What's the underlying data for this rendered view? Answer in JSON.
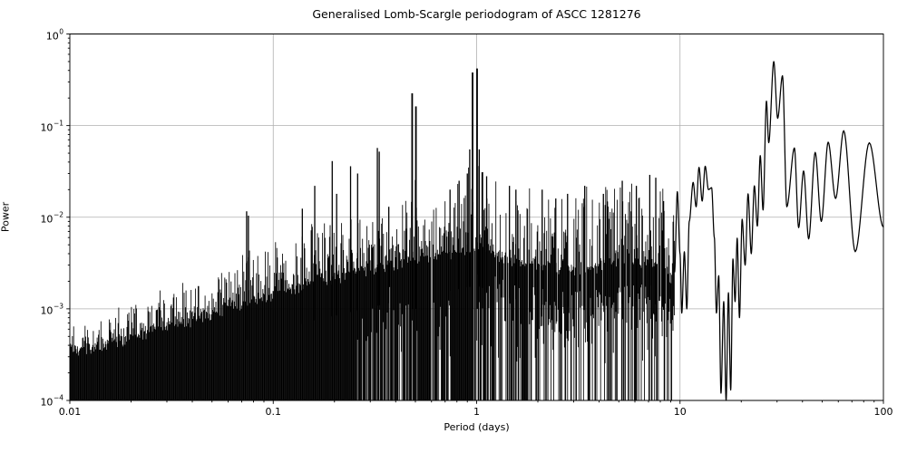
{
  "chart_data": {
    "type": "line",
    "title": "Generalised Lomb-Scargle periodogram of ASCC 1281276",
    "xlabel": "Period (days)",
    "ylabel": "Power",
    "xscale": "log",
    "yscale": "log",
    "xlim": [
      0.01,
      100
    ],
    "ylim": [
      0.0001,
      1
    ],
    "grid": true,
    "legend": "none",
    "line_color": "#000000",
    "grid_color": "#b0b0b0",
    "x_ticks": [
      {
        "value": 0.01,
        "label": "0.01"
      },
      {
        "value": 0.1,
        "label": "0.1"
      },
      {
        "value": 1,
        "label": "1"
      },
      {
        "value": 10,
        "label": "10"
      },
      {
        "value": 100,
        "label": "100"
      }
    ],
    "y_ticks": [
      {
        "value": 1,
        "base": "10",
        "exp": "0"
      },
      {
        "value": 0.1,
        "base": "10",
        "exp": "−1"
      },
      {
        "value": 0.01,
        "base": "10",
        "exp": "−2"
      },
      {
        "value": 0.001,
        "base": "10",
        "exp": "−3"
      },
      {
        "value": 0.0001,
        "base": "10",
        "exp": "−4"
      }
    ],
    "dense_region": {
      "comment": "Unresolved noise forest, period 0.01-9.4 d: solid mass from ylim bottom up to noise_floor_top, spikes up to spike_envelope, white dropout gaps appear for P>1 d",
      "period_range": [
        0.01,
        9.4
      ],
      "noise_floor_top": [
        [
          0.01,
          0.00033
        ],
        [
          0.02,
          0.00046
        ],
        [
          0.03,
          0.0006
        ],
        [
          0.05,
          0.00085
        ],
        [
          0.07,
          0.0011
        ],
        [
          0.1,
          0.00135
        ],
        [
          0.15,
          0.0018
        ],
        [
          0.2,
          0.0021
        ],
        [
          0.3,
          0.0026
        ],
        [
          0.4,
          0.003
        ],
        [
          0.5,
          0.0033
        ],
        [
          0.7,
          0.0038
        ],
        [
          1.0,
          0.0045
        ],
        [
          1.3,
          0.0035
        ],
        [
          2.0,
          0.0028
        ],
        [
          3.0,
          0.0026
        ],
        [
          5.0,
          0.0028
        ],
        [
          7.0,
          0.0032
        ],
        [
          9.4,
          0.002
        ]
      ],
      "spike_envelope": [
        [
          0.01,
          0.0006
        ],
        [
          0.014,
          0.00075
        ],
        [
          0.02,
          0.00115
        ],
        [
          0.03,
          0.0017
        ],
        [
          0.045,
          0.0023
        ],
        [
          0.06,
          0.0032
        ],
        [
          0.08,
          0.0042
        ],
        [
          0.1,
          0.005
        ],
        [
          0.13,
          0.007
        ],
        [
          0.17,
          0.009
        ],
        [
          0.22,
          0.01
        ],
        [
          0.3,
          0.011
        ],
        [
          0.4,
          0.012
        ],
        [
          0.46,
          0.014
        ],
        [
          0.49,
          0.035
        ],
        [
          0.52,
          0.014
        ],
        [
          0.65,
          0.014
        ],
        [
          0.8,
          0.02
        ],
        [
          0.92,
          0.04
        ],
        [
          1.0,
          0.07
        ],
        [
          1.05,
          0.04
        ],
        [
          1.1,
          0.03
        ],
        [
          1.3,
          0.022
        ],
        [
          1.6,
          0.02
        ],
        [
          2.0,
          0.02
        ],
        [
          3.0,
          0.02
        ],
        [
          4.0,
          0.021
        ],
        [
          5.0,
          0.024
        ],
        [
          6.0,
          0.024
        ],
        [
          7.0,
          0.028
        ],
        [
          8.0,
          0.022
        ],
        [
          9.4,
          0.015
        ]
      ],
      "notable_peaks": [
        [
          0.074,
          0.0116
        ],
        [
          0.0755,
          0.0104
        ],
        [
          0.139,
          0.0124
        ],
        [
          0.16,
          0.022
        ],
        [
          0.195,
          0.041
        ],
        [
          0.205,
          0.018
        ],
        [
          0.24,
          0.036
        ],
        [
          0.26,
          0.03
        ],
        [
          0.325,
          0.057
        ],
        [
          0.332,
          0.052
        ],
        [
          0.37,
          0.013
        ],
        [
          0.74,
          0.02
        ],
        [
          0.82,
          0.025
        ],
        [
          0.9,
          0.03
        ],
        [
          0.925,
          0.055
        ],
        [
          1.03,
          0.055
        ],
        [
          1.07,
          0.031
        ],
        [
          1.12,
          0.028
        ],
        [
          1.45,
          0.022
        ],
        [
          1.56,
          0.02
        ],
        [
          2.1,
          0.02
        ],
        [
          2.45,
          0.016
        ],
        [
          2.8,
          0.018
        ],
        [
          3.4,
          0.022
        ],
        [
          4.2,
          0.018
        ],
        [
          5.2,
          0.025
        ],
        [
          6.1,
          0.022
        ],
        [
          7.1,
          0.029
        ],
        [
          7.6,
          0.027
        ],
        [
          8.3,
          0.015
        ]
      ],
      "major_peaks": [
        [
          0.482,
          0.225
        ],
        [
          0.503,
          0.162
        ],
        [
          0.955,
          0.38
        ],
        [
          1.005,
          0.42
        ]
      ]
    },
    "resolved_curve": [
      [
        9.4,
        0.0025
      ],
      [
        9.7,
        0.019
      ],
      [
        10.0,
        0.004
      ],
      [
        10.2,
        0.0009
      ],
      [
        10.5,
        0.0042
      ],
      [
        10.8,
        0.001
      ],
      [
        11.1,
        0.009
      ],
      [
        11.6,
        0.024
      ],
      [
        12.0,
        0.013
      ],
      [
        12.4,
        0.035
      ],
      [
        12.85,
        0.015
      ],
      [
        13.3,
        0.036
      ],
      [
        13.8,
        0.02
      ],
      [
        14.3,
        0.021
      ],
      [
        14.75,
        0.006
      ],
      [
        15.1,
        0.0009
      ],
      [
        15.5,
        0.0023
      ],
      [
        15.9,
        0.00012
      ],
      [
        16.4,
        0.0012
      ],
      [
        16.85,
        0.0001
      ],
      [
        17.3,
        0.0015
      ],
      [
        17.75,
        0.00013
      ],
      [
        18.2,
        0.0035
      ],
      [
        18.65,
        0.0012
      ],
      [
        19.1,
        0.0059
      ],
      [
        19.6,
        0.0008
      ],
      [
        20.2,
        0.0095
      ],
      [
        20.9,
        0.003
      ],
      [
        21.6,
        0.018
      ],
      [
        22.4,
        0.004
      ],
      [
        23.2,
        0.022
      ],
      [
        24.0,
        0.008
      ],
      [
        24.8,
        0.047
      ],
      [
        25.6,
        0.012
      ],
      [
        26.6,
        0.185
      ],
      [
        27.3,
        0.065
      ],
      [
        28.9,
        0.5
      ],
      [
        30.2,
        0.12
      ],
      [
        31.9,
        0.35
      ],
      [
        33.5,
        0.013
      ],
      [
        36.5,
        0.057
      ],
      [
        38.3,
        0.0077
      ],
      [
        40.5,
        0.032
      ],
      [
        42.9,
        0.0058
      ],
      [
        46.2,
        0.051
      ],
      [
        49.5,
        0.009
      ],
      [
        53.5,
        0.066
      ],
      [
        58.2,
        0.016
      ],
      [
        63.8,
        0.088
      ],
      [
        72.7,
        0.0042
      ],
      [
        85.2,
        0.065
      ],
      [
        100,
        0.0078
      ]
    ]
  }
}
